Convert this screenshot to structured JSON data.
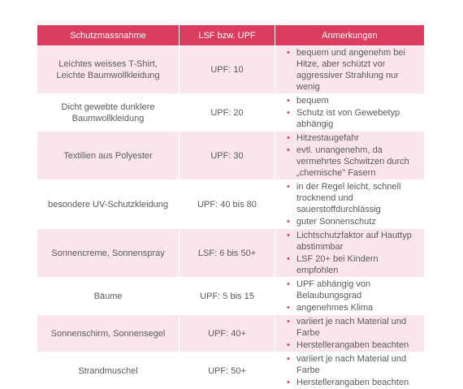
{
  "header": {
    "col1": "Schutzmassnahme",
    "col2": "LSF bzw. UPF",
    "col3": "Anmerkungen"
  },
  "rows": [
    {
      "measure": "Leichtes weisses T-Shirt, Leichte Baumwollkleidung",
      "factor": "UPF: 10",
      "notes": [
        "bequem und angenehm bei Hitze, aber schützt vor aggressiver Strahlung nur wenig"
      ]
    },
    {
      "measure": "Dicht gewebte dunklere Baumwollkleidung",
      "factor": "UPF: 20",
      "notes": [
        "bequem",
        "Schutz ist von Gewebetyp abhängig"
      ]
    },
    {
      "measure": "Textilien aus Polyester",
      "factor": "UPF: 30",
      "notes": [
        "Hitzestaugefahr",
        "evtl. unangenehm, da vermehrtes Schwitzen durch „chemische\" Fasern"
      ]
    },
    {
      "measure": "besondere UV-Schutzkleidung",
      "factor": "UPF: 40 bis 80",
      "notes": [
        "in der Regel leicht, schnell trocknend und sauerstoffdurchlässig",
        "guter Sonnenschutz"
      ]
    },
    {
      "measure": "Sonnencreme, Sonnenspray",
      "factor": "LSF: 6 bis 50+",
      "notes": [
        "Lichtschutzfaktor auf Hauttyp abstimmbar",
        "LSF 20+ bei Kindern empfohlen"
      ]
    },
    {
      "measure": "Bäume",
      "factor": "UPF: 5 bis 15",
      "notes": [
        "UPF abhängig von Belaubungsgrad",
        "angenehmes Klima"
      ]
    },
    {
      "measure": "Sonnenschirm, Sonnensegel",
      "factor": "UPF: 40+",
      "notes": [
        "variiert je nach Material und Farbe",
        "Herstellerangaben beachten"
      ]
    },
    {
      "measure": "Strandmuschel",
      "factor": "UPF: 50+",
      "notes": [
        "variiert je nach Material und Farbe",
        "Herstellerangaben beachten"
      ]
    }
  ],
  "colors": {
    "header_bg": "#dc3d5e",
    "shade_bg": "#fae6ea",
    "bullet": "#dc3d5e"
  }
}
